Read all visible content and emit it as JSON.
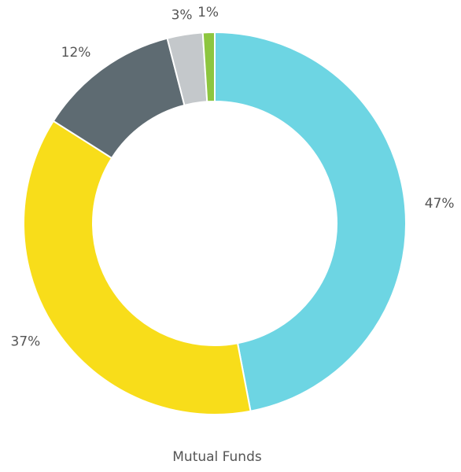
{
  "chart_data": {
    "type": "pie",
    "title": "Mutual Funds",
    "categories": [
      null,
      null,
      null,
      null,
      null
    ],
    "values": [
      47,
      37,
      12,
      3,
      1
    ],
    "value_labels": [
      "47%",
      "37%",
      "12%",
      "3%",
      "1%"
    ],
    "colors": [
      "#6dd5e3",
      "#f8dd1a",
      "#5e6b72",
      "#c4c8cb",
      "#8dc63f"
    ],
    "donut": true
  }
}
